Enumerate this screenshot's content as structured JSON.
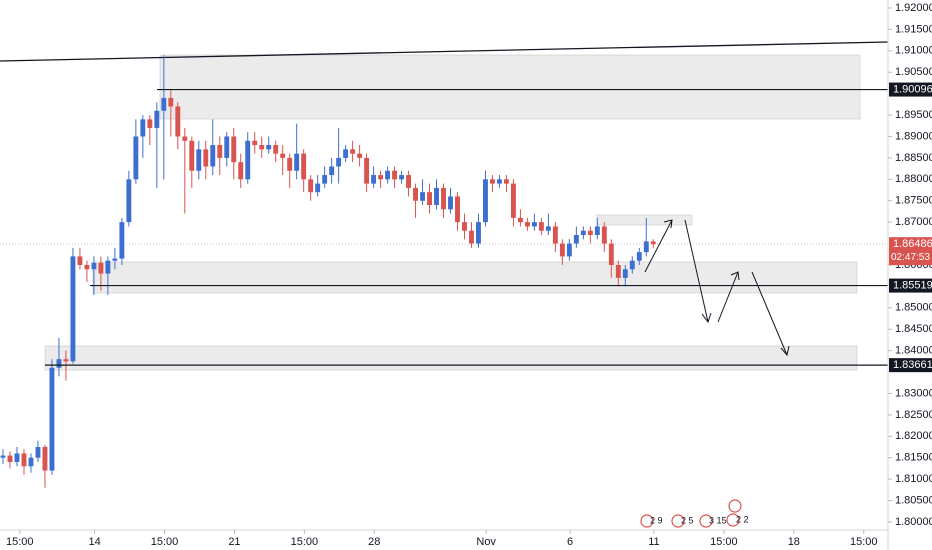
{
  "chart_data": {
    "type": "candlestick",
    "up_color": "#3d6fd1",
    "down_color": "#d9534f",
    "xlim": [
      -0.43,
      126.57
    ],
    "ylim": [
      1.79812,
      1.92187
    ],
    "open": [
      1.815,
      1.8155,
      1.814,
      1.816,
      1.813,
      1.815,
      1.8175,
      1.812,
      1.836,
      1.838,
      1.8375,
      1.862,
      1.86,
      1.859,
      1.8605,
      1.858,
      1.861,
      1.8615,
      1.87,
      1.88,
      1.89,
      1.894,
      1.892,
      1.896,
      1.899,
      1.897,
      1.89,
      1.889,
      1.882,
      1.887,
      1.883,
      1.888,
      1.885,
      1.89,
      1.884,
      1.88,
      1.889,
      1.888,
      1.887,
      1.888,
      1.886,
      1.885,
      1.882,
      1.886,
      1.88,
      1.877,
      1.879,
      1.881,
      1.883,
      1.885,
      1.887,
      1.886,
      1.885,
      1.879,
      1.881,
      1.88,
      1.882,
      1.88,
      1.881,
      1.878,
      1.875,
      1.877,
      1.874,
      1.878,
      1.873,
      1.876,
      1.87,
      1.868,
      1.865,
      1.87,
      1.88,
      1.879,
      1.88,
      1.879,
      1.871,
      1.87,
      1.869,
      1.87,
      1.868,
      1.869,
      1.865,
      1.862,
      1.865,
      1.867,
      1.868,
      1.867,
      1.869,
      1.865,
      1.86,
      1.857,
      1.859,
      1.861,
      1.863,
      1.8655
    ],
    "high": [
      1.817,
      1.8165,
      1.8175,
      1.817,
      1.816,
      1.819,
      1.818,
      1.838,
      1.843,
      1.84,
      1.864,
      1.864,
      1.861,
      1.862,
      1.862,
      1.862,
      1.864,
      1.871,
      1.882,
      1.894,
      1.895,
      1.895,
      1.898,
      1.909,
      1.901,
      1.898,
      1.892,
      1.89,
      1.889,
      1.889,
      1.894,
      1.89,
      1.891,
      1.892,
      1.886,
      1.891,
      1.891,
      1.89,
      1.89,
      1.889,
      1.888,
      1.886,
      1.893,
      1.887,
      1.881,
      1.881,
      1.883,
      1.885,
      1.892,
      1.888,
      1.889,
      1.888,
      1.886,
      1.883,
      1.882,
      1.883,
      1.883,
      1.882,
      1.882,
      1.879,
      1.88,
      1.879,
      1.88,
      1.879,
      1.878,
      1.877,
      1.872,
      1.87,
      1.872,
      1.882,
      1.881,
      1.881,
      1.881,
      1.88,
      1.873,
      1.871,
      1.872,
      1.871,
      1.872,
      1.87,
      1.866,
      1.866,
      1.869,
      1.869,
      1.869,
      1.871,
      1.87,
      1.866,
      1.861,
      1.86,
      1.862,
      1.864,
      1.871,
      1.866
    ],
    "low": [
      1.8135,
      1.8125,
      1.813,
      1.811,
      1.8115,
      1.814,
      1.808,
      1.811,
      1.834,
      1.833,
      1.837,
      1.859,
      1.856,
      1.853,
      1.854,
      1.853,
      1.859,
      1.86,
      1.869,
      1.879,
      1.885,
      1.888,
      1.878,
      1.88,
      1.89,
      1.887,
      1.872,
      1.878,
      1.88,
      1.88,
      1.881,
      1.881,
      1.883,
      1.88,
      1.878,
      1.879,
      1.886,
      1.885,
      1.886,
      1.884,
      1.881,
      1.878,
      1.88,
      1.877,
      1.875,
      1.876,
      1.878,
      1.879,
      1.879,
      1.884,
      1.884,
      1.883,
      1.877,
      1.878,
      1.878,
      1.879,
      1.878,
      1.879,
      1.876,
      1.871,
      1.874,
      1.872,
      1.873,
      1.871,
      1.872,
      1.868,
      1.866,
      1.864,
      1.864,
      1.869,
      1.877,
      1.878,
      1.877,
      1.869,
      1.869,
      1.868,
      1.868,
      1.867,
      1.867,
      1.863,
      1.86,
      1.861,
      1.864,
      1.866,
      1.865,
      1.866,
      1.863,
      1.857,
      1.855,
      1.855,
      1.858,
      1.86,
      1.862,
      1.864
    ],
    "close": [
      1.8155,
      1.814,
      1.816,
      1.813,
      1.815,
      1.8175,
      1.812,
      1.836,
      1.838,
      1.8375,
      1.862,
      1.86,
      1.859,
      1.8605,
      1.858,
      1.861,
      1.8615,
      1.87,
      1.88,
      1.89,
      1.894,
      1.892,
      1.896,
      1.899,
      1.897,
      1.89,
      1.889,
      1.882,
      1.887,
      1.883,
      1.888,
      1.885,
      1.89,
      1.884,
      1.88,
      1.889,
      1.888,
      1.887,
      1.888,
      1.886,
      1.885,
      1.882,
      1.886,
      1.88,
      1.877,
      1.879,
      1.881,
      1.883,
      1.885,
      1.887,
      1.886,
      1.885,
      1.879,
      1.881,
      1.88,
      1.882,
      1.88,
      1.881,
      1.878,
      1.875,
      1.877,
      1.874,
      1.878,
      1.873,
      1.876,
      1.87,
      1.868,
      1.865,
      1.87,
      1.88,
      1.879,
      1.88,
      1.879,
      1.871,
      1.87,
      1.869,
      1.87,
      1.868,
      1.869,
      1.865,
      1.862,
      1.865,
      1.867,
      1.868,
      1.867,
      1.869,
      1.865,
      1.86,
      1.857,
      1.859,
      1.861,
      1.863,
      1.8655,
      1.86486
    ],
    "yticks": [
      {
        "value": 1.92,
        "label": "1.92000"
      },
      {
        "value": 1.915,
        "label": "1.91500"
      },
      {
        "value": 1.91,
        "label": "1.91000"
      },
      {
        "value": 1.905,
        "label": "1.90500"
      },
      {
        "value": 1.895,
        "label": "1.89500"
      },
      {
        "value": 1.89,
        "label": "1.89000"
      },
      {
        "value": 1.885,
        "label": "1.88500"
      },
      {
        "value": 1.88,
        "label": "1.88000"
      },
      {
        "value": 1.875,
        "label": "1.87500"
      },
      {
        "value": 1.87,
        "label": "1.87000"
      },
      {
        "value": 1.86,
        "label": "1.86000"
      },
      {
        "value": 1.85,
        "label": "1.85000"
      },
      {
        "value": 1.845,
        "label": "1.84500"
      },
      {
        "value": 1.84,
        "label": "1.84000"
      },
      {
        "value": 1.83,
        "label": "1.83000"
      },
      {
        "value": 1.825,
        "label": "1.82500"
      },
      {
        "value": 1.82,
        "label": "1.82000"
      },
      {
        "value": 1.815,
        "label": "1.81500"
      },
      {
        "value": 1.81,
        "label": "1.81000"
      },
      {
        "value": 1.805,
        "label": "1.80500"
      },
      {
        "value": 1.8,
        "label": "1.80000"
      }
    ],
    "xticks": [
      {
        "value": 2.4,
        "label": "15:00"
      },
      {
        "value": 13.1,
        "label": "14"
      },
      {
        "value": 23.1,
        "label": "15:00"
      },
      {
        "value": 33.1,
        "label": "21"
      },
      {
        "value": 43.1,
        "label": "15:00"
      },
      {
        "value": 53.1,
        "label": "28"
      },
      {
        "value": 69.1,
        "label": "Nov"
      },
      {
        "value": 81.1,
        "label": "6"
      },
      {
        "value": 93.1,
        "label": "11"
      },
      {
        "value": 103.1,
        "label": "15:00"
      },
      {
        "value": 113.1,
        "label": "18"
      },
      {
        "value": 123.1,
        "label": "15:00"
      }
    ],
    "levels": [
      1.90096,
      1.85519,
      1.83661
    ],
    "countdown": "02:47:53",
    "events": [
      "2 9",
      "2 5",
      "3 15",
      "2 2"
    ]
  }
}
